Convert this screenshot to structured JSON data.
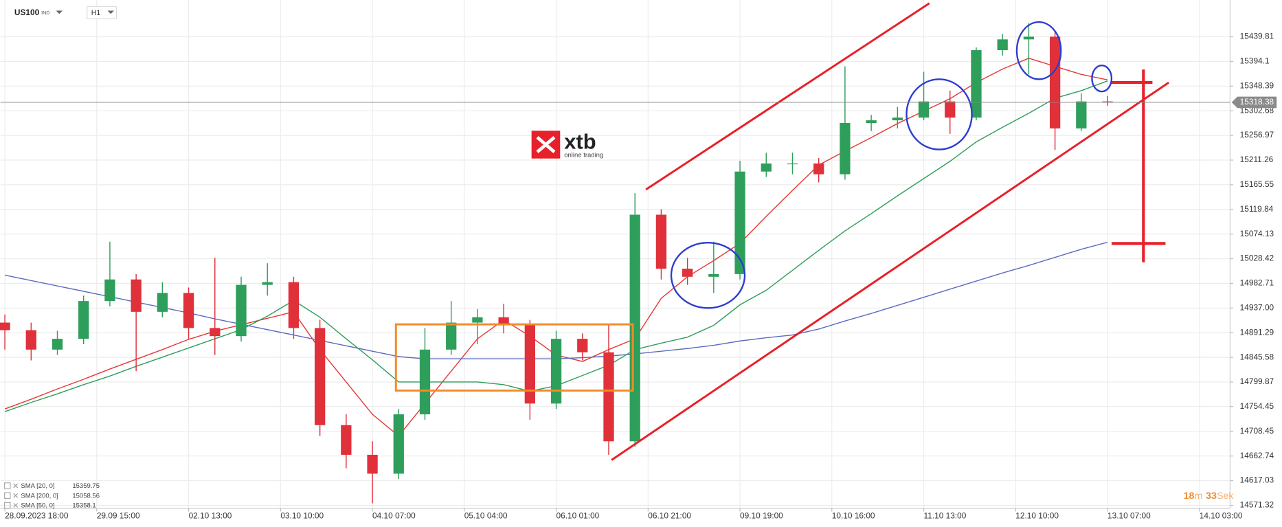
{
  "header": {
    "symbol": "US100",
    "market": "IND",
    "interval": "H1"
  },
  "logo": {
    "brand": "xtb",
    "tagline": "online trading"
  },
  "countdown": {
    "minutes": 18,
    "minutes_unit": "m",
    "seconds": 33,
    "seconds_unit": "Sek"
  },
  "chart_data": {
    "type": "candlestick",
    "x": [
      0,
      6,
      12,
      18,
      24,
      30,
      36,
      42,
      48,
      54,
      60,
      66,
      72,
      78,
      84,
      90,
      96,
      102,
      108,
      114,
      120,
      126,
      132,
      138,
      144,
      150,
      156,
      162,
      168,
      174,
      180,
      186,
      192,
      198,
      204,
      210,
      216,
      222,
      228,
      234,
      240,
      246,
      252
    ],
    "open": [
      14910,
      14896,
      14860,
      14880,
      14950,
      14990,
      14930,
      14965,
      14900,
      14885,
      14980,
      14985,
      14900,
      14720,
      14665,
      14630,
      14740,
      14860,
      14910,
      14920,
      14905,
      14760,
      14880,
      14855,
      14690,
      15110,
      15010,
      14995,
      15000,
      15190,
      15205,
      15205,
      15185,
      15280,
      15285,
      15290,
      15320,
      15290,
      15415,
      15435,
      15440,
      15270,
      15320
    ],
    "high": [
      14925,
      14910,
      14895,
      14960,
      15060,
      15000,
      14985,
      14975,
      15030,
      14995,
      15020,
      14995,
      14915,
      14740,
      14690,
      14750,
      14900,
      14950,
      14935,
      14945,
      14915,
      14895,
      14890,
      14905,
      15150,
      15120,
      15030,
      15060,
      15210,
      15225,
      15225,
      15215,
      15385,
      15295,
      15310,
      15375,
      15340,
      15420,
      15445,
      15465,
      15450,
      15335,
      15330
    ],
    "low": [
      14860,
      14840,
      14850,
      14870,
      14940,
      14820,
      14920,
      14880,
      14850,
      14875,
      14960,
      14880,
      14700,
      14640,
      14575,
      14620,
      14730,
      14850,
      14870,
      14890,
      14730,
      14750,
      14840,
      14665,
      14680,
      14990,
      14980,
      14965,
      14990,
      15180,
      15185,
      15170,
      15175,
      15265,
      15270,
      15285,
      15260,
      15285,
      15405,
      15370,
      15230,
      15265,
      15312
    ],
    "close": [
      14896,
      14860,
      14880,
      14950,
      14990,
      14930,
      14965,
      14900,
      14885,
      14980,
      14985,
      14900,
      14720,
      14665,
      14630,
      14740,
      14860,
      14910,
      14920,
      14905,
      14760,
      14880,
      14855,
      14690,
      15110,
      15010,
      14995,
      15000,
      15190,
      15205,
      15205,
      15185,
      15280,
      15285,
      15290,
      15320,
      15290,
      15415,
      15435,
      15440,
      15270,
      15320,
      15318
    ],
    "up_color": "#2e9e5b",
    "down_color": "#e0303a",
    "series": [
      {
        "name": "SMA [20, 0]",
        "last_value": 15359.75,
        "color": "#e53935",
        "values": [
          14750,
          14768,
          14787,
          14805,
          14824,
          14842,
          14860,
          14879,
          14894,
          14906,
          14918,
          14930,
          14860,
          14800,
          14740,
          14700,
          14760,
          14820,
          14880,
          14915,
          14885,
          14850,
          14838,
          14860,
          14880,
          14955,
          14995,
          15025,
          15057,
          15107,
          15155,
          15202,
          15228,
          15253,
          15279,
          15302,
          15325,
          15355,
          15380,
          15400,
          15385,
          15370,
          15360
        ]
      },
      {
        "name": "SMA [200, 0]",
        "last_value": 15058.56,
        "color": "#5c6bc0",
        "values": [
          14998,
          14988,
          14978,
          14968,
          14958,
          14948,
          14938,
          14928,
          14917,
          14907,
          14897,
          14887,
          14877,
          14867,
          14857,
          14847,
          14843,
          14843,
          14843,
          14843,
          14843,
          14843,
          14845,
          14848,
          14852,
          14857,
          14862,
          14868,
          14876,
          14882,
          14887,
          14898,
          14913,
          14927,
          14942,
          14957,
          14972,
          14987,
          15002,
          15016,
          15031,
          15046,
          15059
        ]
      },
      {
        "name": "SMA [50, 0]",
        "last_value": 15358.1,
        "color": "#2e9e5b",
        "values": [
          14745,
          14762,
          14778,
          14795,
          14811,
          14829,
          14846,
          14863,
          14880,
          14897,
          14922,
          14951,
          14920,
          14880,
          14841,
          14800,
          14800,
          14800,
          14800,
          14795,
          14783,
          14793,
          14812,
          14831,
          14860,
          14872,
          14883,
          14905,
          14943,
          14970,
          15007,
          15044,
          15080,
          15112,
          15145,
          15177,
          15209,
          15245,
          15272,
          15298,
          15326,
          15340,
          15358
        ]
      }
    ],
    "current_price": 15318.38,
    "xlim": [
      -1,
      280
    ],
    "ylim": [
      14566,
      15508
    ],
    "xticks": [
      {
        "value": 0,
        "label": "28.09.2023 18:00"
      },
      {
        "value": 21,
        "label": "29.09 15:00"
      },
      {
        "value": 42,
        "label": "02.10 13:00"
      },
      {
        "value": 63,
        "label": "03.10 10:00"
      },
      {
        "value": 84,
        "label": "04.10 07:00"
      },
      {
        "value": 105,
        "label": "05.10 04:00"
      },
      {
        "value": 126,
        "label": "06.10 01:00"
      },
      {
        "value": 147,
        "label": "06.10 21:00"
      },
      {
        "value": 168,
        "label": "09.10 19:00"
      },
      {
        "value": 189,
        "label": "10.10 16:00"
      },
      {
        "value": 210,
        "label": "11.10 13:00"
      },
      {
        "value": 231,
        "label": "12.10 10:00"
      },
      {
        "value": 252,
        "label": "13.10 07:00"
      },
      {
        "value": 273,
        "label": "14.10 03:00"
      }
    ],
    "yticks": [
      15439.81,
      15394.1,
      15348.39,
      15302.68,
      15256.97,
      15211.26,
      15165.55,
      15119.84,
      15074.13,
      15028.42,
      14982.71,
      {
        "value": 14937,
        "label": "14937.00"
      },
      14891.29,
      14845.58,
      14799.87,
      14754.45,
      14708.45,
      14662.74,
      14617.03,
      14571.32
    ],
    "grid": true
  }
}
